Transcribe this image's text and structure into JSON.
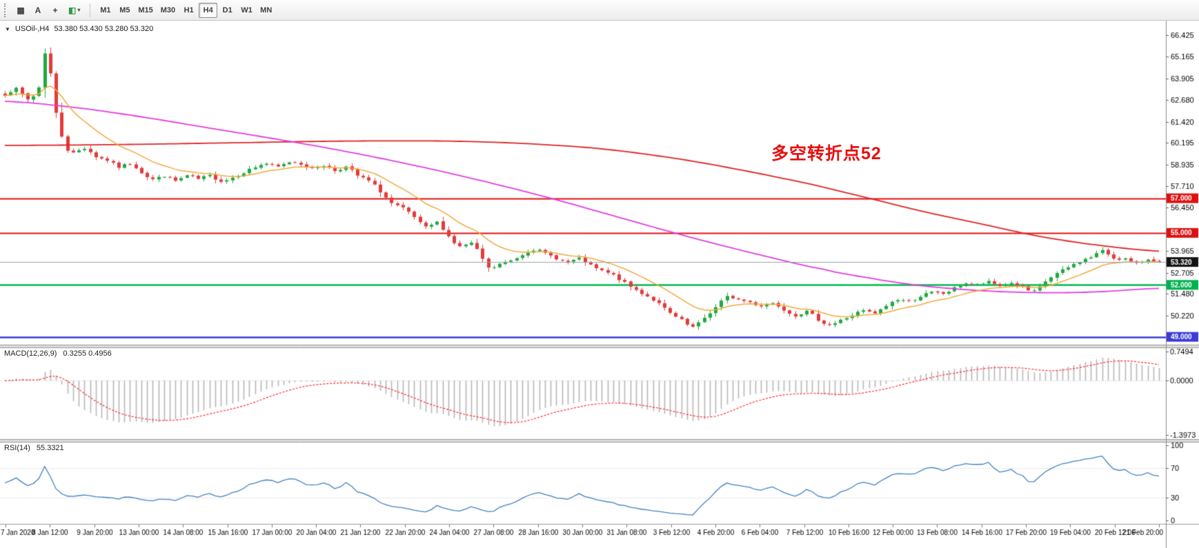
{
  "toolbar": {
    "tools": [
      {
        "name": "cursor-tool",
        "glyph": "▦"
      },
      {
        "name": "text-label-tool",
        "glyph": "A"
      },
      {
        "name": "crosshair-tool",
        "glyph": "+"
      },
      {
        "name": "draw-objects-tool",
        "glyph": "◧",
        "color": "#2f9e44",
        "dropdown": "▾"
      }
    ],
    "timeframes": [
      {
        "label": "M1"
      },
      {
        "label": "M5"
      },
      {
        "label": "M15"
      },
      {
        "label": "M30"
      },
      {
        "label": "H1"
      },
      {
        "label": "H4",
        "active": true
      },
      {
        "label": "D1"
      },
      {
        "label": "W1"
      },
      {
        "label": "MN"
      }
    ]
  },
  "main_chart": {
    "expander_glyph": "▼",
    "title": "USOil-,H4",
    "ohlc": "53.380 53.430 53.280 53.320",
    "annotation": {
      "text": "多空转折点52",
      "color": "#e60f0f"
    },
    "price_scale": {
      "ticks": [
        "66.425",
        "65.165",
        "63.905",
        "62.680",
        "61.420",
        "60.195",
        "58.935",
        "57.710",
        "56.450",
        "53.965",
        "52.705",
        "51.480",
        "50.220"
      ],
      "badges": [
        {
          "value": "57.000",
          "color": "#dd1111"
        },
        {
          "value": "55.000",
          "color": "#dd1111"
        },
        {
          "value": "52.000",
          "color": "#00b050"
        },
        {
          "value": "49.000",
          "color": "#3b3bd6"
        },
        {
          "value": "53.320",
          "color": "#131313"
        }
      ]
    },
    "hlines": [
      {
        "price": 57.0,
        "color": "#dd1111",
        "width": 2
      },
      {
        "price": 55.0,
        "color": "#dd1111",
        "width": 2
      },
      {
        "price": 52.0,
        "color": "#00b950",
        "width": 2.5
      },
      {
        "price": 49.0,
        "color": "#3b3bd6",
        "width": 2.5
      }
    ],
    "bid_line": {
      "price": 53.32,
      "color": "#97a1ad",
      "width": 1
    }
  },
  "indicators": {
    "macd": {
      "label": "MACD(12,26,9)",
      "values": "0.3255 0.4956",
      "scale": {
        "max": "0.7494",
        "zero": "0.0000",
        "min": "-1.3973"
      }
    },
    "rsi": {
      "label": "RSI(14)",
      "value": "55.3321",
      "scale": {
        "max": "100",
        "upper": "70",
        "lower": "30",
        "min": "0"
      }
    }
  },
  "time_axis": {
    "labels": [
      "7 Jan 2020",
      "8 Jan 12:00",
      "9 Jan 20:00",
      "13 Jan 00:00",
      "14 Jan 08:00",
      "15 Jan 16:00",
      "17 Jan 00:00",
      "20 Jan 04:00",
      "21 Jan 12:00",
      "22 Jan 20:00",
      "24 Jan 04:00",
      "27 Jan 08:00",
      "28 Jan 16:00",
      "30 Jan 00:00",
      "31 Jan 08:00",
      "3 Feb 12:00",
      "4 Feb 20:00",
      "6 Feb 04:00",
      "7 Feb 12:00",
      "10 Feb 16:00",
      "12 Feb 00:00",
      "13 Feb 08:00",
      "14 Feb 16:00",
      "17 Feb 20:00",
      "19 Feb 04:00",
      "20 Feb 12:00",
      "21 Feb 20:00"
    ]
  },
  "chart_data": {
    "type": "candlestick",
    "symbol": "USOil-",
    "timeframe": "H4",
    "bars": 204,
    "seed": 7,
    "last_close": 53.32,
    "price_range": {
      "max": 67.25,
      "min": 48.55
    },
    "macd_scale": {
      "max": 0.85,
      "min": -1.5
    },
    "rsi_scale": {
      "max": 105,
      "min": -5
    },
    "ma_fast_period": 13,
    "close_anchors": [
      [
        0,
        63.0
      ],
      [
        2,
        63.3
      ],
      [
        4,
        62.7
      ],
      [
        5,
        62.9
      ],
      [
        6,
        63.4
      ],
      [
        7,
        65.4
      ],
      [
        8,
        64.2
      ],
      [
        9,
        61.9
      ],
      [
        10,
        60.6
      ],
      [
        11,
        59.8
      ],
      [
        12,
        59.6
      ],
      [
        14,
        59.9
      ],
      [
        16,
        59.4
      ],
      [
        18,
        59.2
      ],
      [
        20,
        58.8
      ],
      [
        22,
        59.0
      ],
      [
        24,
        58.5
      ],
      [
        26,
        58.1
      ],
      [
        28,
        58.3
      ],
      [
        30,
        58.0
      ],
      [
        32,
        58.3
      ],
      [
        34,
        58.1
      ],
      [
        36,
        58.3
      ],
      [
        38,
        58.0
      ],
      [
        40,
        58.2
      ],
      [
        42,
        58.5
      ],
      [
        44,
        58.8
      ],
      [
        46,
        59.0
      ],
      [
        48,
        58.8
      ],
      [
        50,
        59.1
      ],
      [
        52,
        59.0
      ],
      [
        54,
        58.7
      ],
      [
        56,
        58.9
      ],
      [
        58,
        58.6
      ],
      [
        60,
        58.8
      ],
      [
        62,
        58.3
      ],
      [
        64,
        58.0
      ],
      [
        66,
        57.4
      ],
      [
        68,
        56.7
      ],
      [
        70,
        56.4
      ],
      [
        72,
        55.9
      ],
      [
        74,
        55.3
      ],
      [
        76,
        55.6
      ],
      [
        78,
        54.8
      ],
      [
        80,
        54.2
      ],
      [
        82,
        54.4
      ],
      [
        84,
        53.5
      ],
      [
        85,
        52.95
      ],
      [
        87,
        53.2
      ],
      [
        89,
        53.4
      ],
      [
        91,
        53.75
      ],
      [
        93,
        54.05
      ],
      [
        95,
        53.8
      ],
      [
        97,
        53.55
      ],
      [
        99,
        53.3
      ],
      [
        101,
        53.5
      ],
      [
        103,
        53.1
      ],
      [
        105,
        52.8
      ],
      [
        107,
        52.55
      ],
      [
        109,
        52.1
      ],
      [
        111,
        51.7
      ],
      [
        113,
        51.35
      ],
      [
        115,
        50.9
      ],
      [
        117,
        50.35
      ],
      [
        119,
        49.95
      ],
      [
        121,
        49.55
      ],
      [
        123,
        50.1
      ],
      [
        125,
        50.7
      ],
      [
        127,
        51.3
      ],
      [
        129,
        51.15
      ],
      [
        131,
        51.0
      ],
      [
        133,
        50.8
      ],
      [
        135,
        50.95
      ],
      [
        137,
        50.6
      ],
      [
        139,
        50.25
      ],
      [
        141,
        50.45
      ],
      [
        143,
        50.0
      ],
      [
        145,
        49.7
      ],
      [
        147,
        49.95
      ],
      [
        149,
        50.25
      ],
      [
        151,
        50.5
      ],
      [
        153,
        50.35
      ],
      [
        155,
        50.8
      ],
      [
        157,
        51.15
      ],
      [
        159,
        51.05
      ],
      [
        161,
        51.35
      ],
      [
        163,
        51.55
      ],
      [
        165,
        51.5
      ],
      [
        167,
        51.8
      ],
      [
        169,
        52.1
      ],
      [
        171,
        52.0
      ],
      [
        173,
        52.15
      ],
      [
        175,
        51.95
      ],
      [
        177,
        52.1
      ],
      [
        179,
        51.85
      ],
      [
        181,
        51.6
      ],
      [
        183,
        52.2
      ],
      [
        185,
        52.65
      ],
      [
        187,
        53.0
      ],
      [
        189,
        53.35
      ],
      [
        191,
        53.6
      ],
      [
        193,
        53.95
      ],
      [
        195,
        53.55
      ],
      [
        197,
        53.5
      ],
      [
        199,
        53.2
      ],
      [
        201,
        53.5
      ],
      [
        203,
        53.32
      ]
    ],
    "ma_mid_anchors": [
      [
        0,
        62.6
      ],
      [
        12,
        62.25
      ],
      [
        24,
        61.7
      ],
      [
        36,
        61.05
      ],
      [
        48,
        60.4
      ],
      [
        60,
        59.7
      ],
      [
        72,
        58.9
      ],
      [
        84,
        58.0
      ],
      [
        96,
        57.0
      ],
      [
        108,
        55.9
      ],
      [
        120,
        54.8
      ],
      [
        132,
        53.8
      ],
      [
        144,
        52.9
      ],
      [
        152,
        52.4
      ],
      [
        160,
        52.0
      ],
      [
        168,
        51.75
      ],
      [
        176,
        51.6
      ],
      [
        184,
        51.55
      ],
      [
        192,
        51.6
      ],
      [
        203,
        51.8
      ]
    ],
    "ma_slow_anchors": [
      [
        0,
        60.05
      ],
      [
        20,
        60.1
      ],
      [
        40,
        60.2
      ],
      [
        60,
        60.3
      ],
      [
        78,
        60.3
      ],
      [
        92,
        60.15
      ],
      [
        105,
        59.85
      ],
      [
        118,
        59.3
      ],
      [
        130,
        58.6
      ],
      [
        142,
        57.8
      ],
      [
        152,
        57.0
      ],
      [
        162,
        56.2
      ],
      [
        172,
        55.5
      ],
      [
        182,
        54.8
      ],
      [
        192,
        54.3
      ],
      [
        203,
        53.95
      ]
    ],
    "colors": {
      "up": "#20aa40",
      "down": "#e23b3b",
      "ma_fast": "#f2a93b",
      "ma_mid": "#e13ce1",
      "ma_slow": "#e02222",
      "macd_hist": "#b6b6b6",
      "macd_signal": "#ff2a2a",
      "rsi": "#3f7fc1",
      "grid_dotted": "#c2c2c2"
    }
  }
}
